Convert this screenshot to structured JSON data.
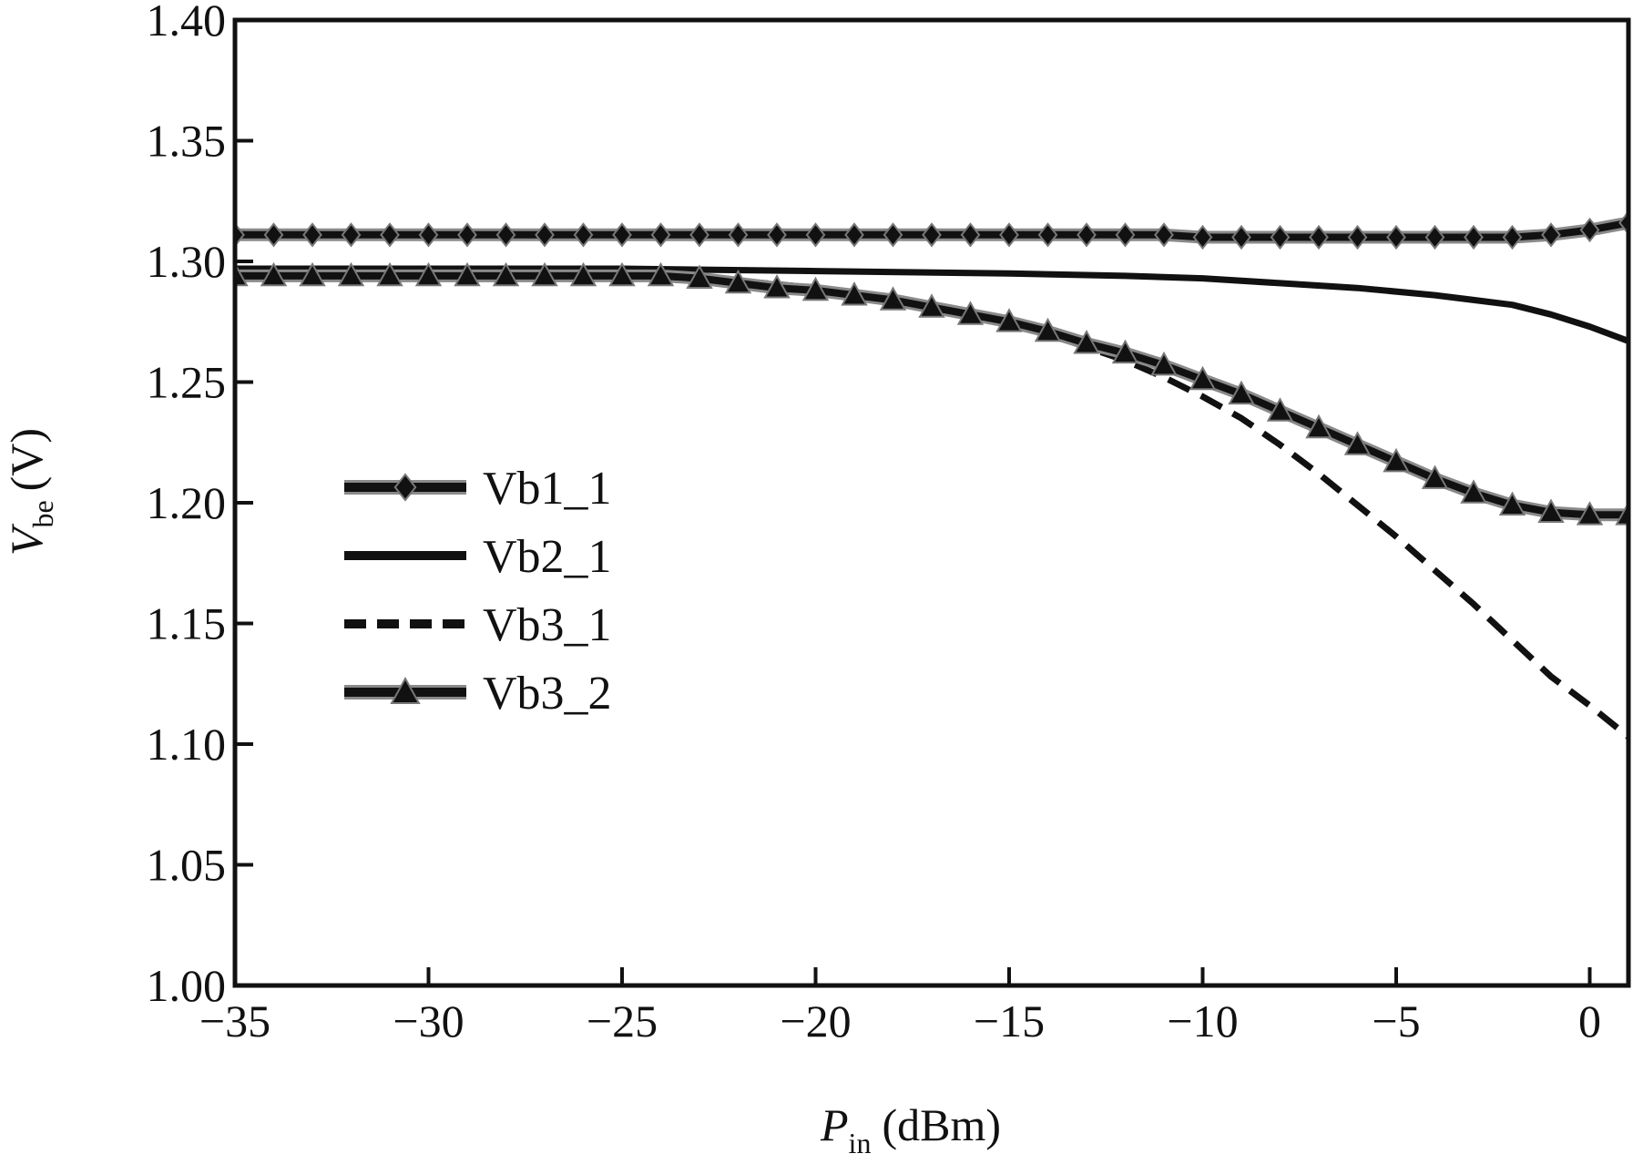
{
  "chart_data": {
    "type": "line",
    "xlabel": {
      "main": "P",
      "sub": "in",
      "unit": "(dBm)"
    },
    "ylabel": {
      "main": "V",
      "sub": "be",
      "unit": "(V)"
    },
    "xlim": [
      -35,
      1
    ],
    "ylim": [
      1.0,
      1.4
    ],
    "x_ticks": [
      -35,
      -30,
      -25,
      -20,
      -15,
      -10,
      -5,
      0
    ],
    "x_tick_labels": [
      "−35",
      "−30",
      "−25",
      "−20",
      "−15",
      "−10",
      "−5",
      "0"
    ],
    "y_ticks": [
      1.0,
      1.05,
      1.1,
      1.15,
      1.2,
      1.25,
      1.3,
      1.35,
      1.4
    ],
    "y_tick_labels": [
      "1.00",
      "1.05",
      "1.10",
      "1.15",
      "1.20",
      "1.25",
      "1.30",
      "1.35",
      "1.40"
    ],
    "grid": false,
    "legend_position": "center-left",
    "series": [
      {
        "name": "Vb1_1",
        "style": "solid",
        "marker": "diamond",
        "color": "#111111",
        "x": [
          -35,
          -34,
          -33,
          -32,
          -31,
          -30,
          -29,
          -28,
          -27,
          -26,
          -25,
          -24,
          -23,
          -22,
          -21,
          -20,
          -19,
          -18,
          -17,
          -16,
          -15,
          -14,
          -13,
          -12,
          -11,
          -10,
          -9,
          -8,
          -7,
          -6,
          -5,
          -4,
          -3,
          -2,
          -1,
          0,
          1
        ],
        "y": [
          1.311,
          1.311,
          1.311,
          1.311,
          1.311,
          1.311,
          1.311,
          1.311,
          1.311,
          1.311,
          1.311,
          1.311,
          1.311,
          1.311,
          1.311,
          1.311,
          1.311,
          1.311,
          1.311,
          1.311,
          1.311,
          1.311,
          1.311,
          1.311,
          1.311,
          1.31,
          1.31,
          1.31,
          1.31,
          1.31,
          1.31,
          1.31,
          1.31,
          1.31,
          1.311,
          1.313,
          1.316
        ]
      },
      {
        "name": "Vb2_1",
        "style": "solid",
        "marker": "none",
        "color": "#111111",
        "x": [
          -35,
          -30,
          -25,
          -20,
          -15,
          -12,
          -10,
          -8,
          -6,
          -4,
          -3,
          -2,
          -1,
          0,
          1
        ],
        "y": [
          1.297,
          1.297,
          1.297,
          1.296,
          1.295,
          1.294,
          1.293,
          1.291,
          1.289,
          1.286,
          1.284,
          1.282,
          1.278,
          1.273,
          1.267
        ]
      },
      {
        "name": "Vb3_1",
        "style": "dashed",
        "marker": "none",
        "color": "#111111",
        "x": [
          -35,
          -30,
          -25,
          -22,
          -20,
          -18,
          -16,
          -14,
          -12,
          -11,
          -10,
          -9,
          -8,
          -7,
          -6,
          -5,
          -4,
          -3,
          -2,
          -1,
          0,
          1
        ],
        "y": [
          1.294,
          1.294,
          1.294,
          1.292,
          1.289,
          1.285,
          1.279,
          1.27,
          1.259,
          1.252,
          1.244,
          1.235,
          1.224,
          1.212,
          1.199,
          1.186,
          1.172,
          1.158,
          1.143,
          1.128,
          1.116,
          1.103
        ]
      },
      {
        "name": "Vb3_2",
        "style": "solid",
        "marker": "triangle",
        "color": "#111111",
        "x": [
          -35,
          -34,
          -33,
          -32,
          -31,
          -30,
          -29,
          -28,
          -27,
          -26,
          -25,
          -24,
          -23,
          -22,
          -21,
          -20,
          -19,
          -18,
          -17,
          -16,
          -15,
          -14,
          -13,
          -12,
          -11,
          -10,
          -9,
          -8,
          -7,
          -6,
          -5,
          -4,
          -3,
          -2,
          -1,
          0,
          1
        ],
        "y": [
          1.294,
          1.294,
          1.294,
          1.294,
          1.294,
          1.294,
          1.294,
          1.294,
          1.294,
          1.294,
          1.294,
          1.294,
          1.293,
          1.291,
          1.289,
          1.288,
          1.286,
          1.284,
          1.281,
          1.278,
          1.275,
          1.271,
          1.266,
          1.262,
          1.257,
          1.251,
          1.245,
          1.238,
          1.231,
          1.224,
          1.217,
          1.21,
          1.204,
          1.199,
          1.196,
          1.195,
          1.195
        ]
      }
    ]
  }
}
